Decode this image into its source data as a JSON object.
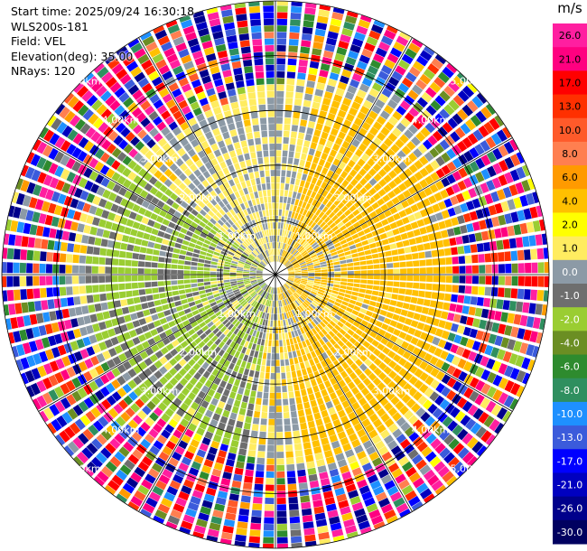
{
  "header": {
    "start_time": "Start time: 2025/09/24 16:30:18",
    "instrument": "WLS200s-181",
    "field": "Field: VEL",
    "elevation": "Elevation(deg): 35.00",
    "nrays": "NRays: 120"
  },
  "colorbar": {
    "unit": "m/s",
    "ticks": [
      "26.0",
      "21.0",
      "17.0",
      "13.0",
      "10.0",
      "8.0",
      "6.0",
      "4.0",
      "2.0",
      "1.0",
      "0.0",
      "-1.0",
      "-2.0",
      "-4.0",
      "-6.0",
      "-8.0",
      "-10.0",
      "-13.0",
      "-17.0",
      "-21.0",
      "-26.0",
      "-30.0"
    ],
    "colors": [
      "#ff1fa0",
      "#ff0080",
      "#ff0000",
      "#ff3000",
      "#ff5a2a",
      "#ff7f50",
      "#ff9a00",
      "#ffc000",
      "#ffff00",
      "#ffec60",
      "#8c9aa6",
      "#6e6e6e",
      "#9acd32",
      "#6b8e23",
      "#2e8b2e",
      "#2f8f5f",
      "#1e90ff",
      "#3b5bdb",
      "#0000ff",
      "#0000c0",
      "#00008b",
      "#000060"
    ]
  },
  "chart_data": {
    "type": "heatmap",
    "title": "",
    "field": "VEL",
    "units": "m/s",
    "nrays": 120,
    "elevation_deg": 35.0,
    "range_rings_km": [
      1.0,
      2.0,
      3.0,
      4.0,
      5.0
    ],
    "ring_labels": [
      "1.00km",
      "2.00km",
      "3.00km",
      "4.00km",
      "5.00km"
    ],
    "color_range": [
      -30.0,
      26.0
    ],
    "velocity_sectors": [
      {
        "azimuth_deg": [
          15,
          170
        ],
        "range_km": [
          0.0,
          3.5
        ],
        "velocity_ms": [
          2.0,
          4.0
        ],
        "description_color": "yellow"
      },
      {
        "azimuth_deg": [
          190,
          310
        ],
        "range_km": [
          0.0,
          3.5
        ],
        "velocity_ms": [
          -4.0,
          -1.0
        ],
        "description_color": "olive-green"
      },
      {
        "azimuth_deg": [
          310,
          15
        ],
        "range_km": [
          0.0,
          2.5
        ],
        "velocity_ms": [
          -0.5,
          1.0
        ],
        "description_color": "gray"
      },
      {
        "azimuth_deg": [
          0,
          360
        ],
        "range_km": [
          3.5,
          5.0
        ],
        "velocity_ms": [
          -30.0,
          26.0
        ],
        "description_color": "noise"
      }
    ],
    "grid": true
  }
}
